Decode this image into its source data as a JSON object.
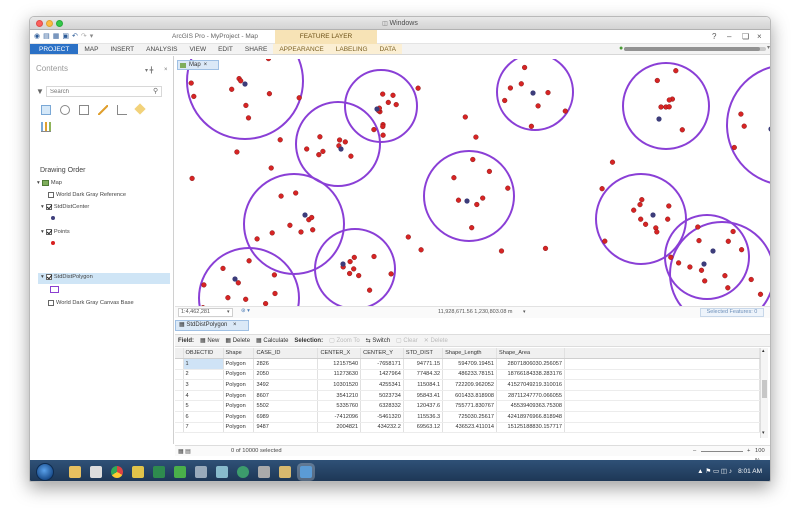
{
  "window": {
    "os_title": "Windows"
  },
  "app": {
    "title": "ArcGIS Pro - MyProject - Map",
    "context_header": "FEATURE LAYER",
    "help": "?",
    "minimize": "–",
    "restore": "❏",
    "close": "×",
    "progress": 0.96
  },
  "ribbon": {
    "tabs": [
      "PROJECT",
      "MAP",
      "INSERT",
      "ANALYSIS",
      "VIEW",
      "EDIT",
      "SHARE",
      "APPEARANCE",
      "LABELING",
      "DATA"
    ]
  },
  "contents": {
    "title": "Contents",
    "search_placeholder": "Search",
    "drawing_order": "Drawing Order",
    "layers": {
      "map": "Map",
      "ref": "World Dark Gray Reference",
      "center": "StdDistCenter",
      "points": "Points",
      "polygon": "StdDistPolygon",
      "base": "World Dark Gray Canvas Base"
    }
  },
  "map": {
    "tab_label": "Map",
    "scale": "1:4,462,281",
    "coords": "11,928,671.56  1,230,803.08 m",
    "selected": "Selected Features: 0"
  },
  "table": {
    "tab_label": "StdDistPolygon",
    "toolbar": {
      "field": "Field:",
      "new": "New",
      "delete": "Delete",
      "calculate": "Calculate",
      "selection": "Selection:",
      "zoom": "Zoom To",
      "switch": "Switch",
      "clear": "Clear",
      "delete_sel": "Delete"
    },
    "columns": [
      "OBJECTID",
      "Shape",
      "CASE_ID",
      "CENTER_X",
      "CENTER_Y",
      "STD_DIST",
      "Shape_Length",
      "Shape_Area"
    ],
    "rows": [
      [
        "1",
        "Polygon",
        "2826",
        "12157540",
        "-7658171",
        "94771.15",
        "594709.19451",
        "28071806030.256057"
      ],
      [
        "2",
        "Polygon",
        "2050",
        "11273630",
        "1427964",
        "77484.32",
        "486233.78151",
        "18766184338.283176"
      ],
      [
        "3",
        "Polygon",
        "3492",
        "10301520",
        "4255341",
        "115084.1",
        "722209.962052",
        "41527049219.310016"
      ],
      [
        "4",
        "Polygon",
        "8607",
        "3541210",
        "5023734",
        "95843.41",
        "601433.818908",
        "28711247770.066055"
      ],
      [
        "5",
        "Polygon",
        "5502",
        "5335760",
        "6328332",
        "120437.6",
        "755771.830767",
        "45539409363.75308"
      ],
      [
        "6",
        "Polygon",
        "6989",
        "-7412096",
        "-5461320",
        "115536.3",
        "725030.25617",
        "42418976966.818948"
      ],
      [
        "7",
        "Polygon",
        "9487",
        "2004821",
        "434232.2",
        "69563.12",
        "436523.411014",
        "15125188830.157717"
      ]
    ],
    "footer": "0 of 10000 selected",
    "zoom": "100 %"
  },
  "taskbar": {
    "time": "8:01 AM"
  }
}
